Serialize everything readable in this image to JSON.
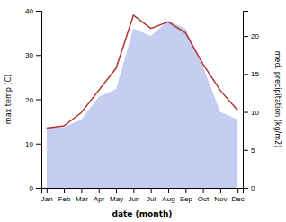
{
  "chart_data": {
    "type": "line",
    "xlabel": "date (month)",
    "ylabel": "max temp (C)",
    "y2label": "med. precipitation (kg/m2)",
    "categories": [
      "Jan",
      "Feb",
      "Mar",
      "Apr",
      "May",
      "Jun",
      "Jul",
      "Aug",
      "Sep",
      "Oct",
      "Nov",
      "Dec"
    ],
    "series": [
      {
        "type": "area",
        "axis": "y2",
        "color": "#c5cef0",
        "values": [
          8.0,
          8.0,
          9.0,
          12.0,
          13.0,
          21.0,
          20.0,
          22.0,
          21.0,
          16.0,
          10.0,
          9.0
        ]
      },
      {
        "type": "line",
        "color": "#b03535",
        "values": [
          13.5,
          14.0,
          17.0,
          22.0,
          27.0,
          39.0,
          36.0,
          37.5,
          35.0,
          28.0,
          22.0,
          17.5
        ]
      }
    ],
    "ylim": [
      0,
      40
    ],
    "yticks": [
      0,
      10,
      20,
      30,
      40
    ],
    "y2lim": [
      0,
      23.33
    ],
    "y2ticks": [
      0,
      5,
      10,
      15,
      20
    ],
    "grid": false
  }
}
